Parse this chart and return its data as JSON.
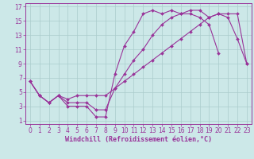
{
  "background_color": "#cce8e8",
  "grid_color": "#aacccc",
  "line_color": "#993399",
  "xlabel": "Windchill (Refroidissement éolien,°C)",
  "xlim": [
    -0.5,
    23.5
  ],
  "ylim": [
    0.5,
    17.5
  ],
  "xticks": [
    0,
    1,
    2,
    3,
    4,
    5,
    6,
    7,
    8,
    9,
    10,
    11,
    12,
    13,
    14,
    15,
    16,
    17,
    18,
    19,
    20,
    21,
    22,
    23
  ],
  "yticks": [
    1,
    3,
    5,
    7,
    9,
    11,
    13,
    15,
    17
  ],
  "series1_x": [
    0,
    1,
    2,
    3,
    4,
    5,
    6,
    7,
    8,
    9,
    10,
    11,
    12,
    13,
    14,
    15,
    16,
    17,
    18,
    19,
    20,
    21
  ],
  "series1_y": [
    6.5,
    4.5,
    3.5,
    4.5,
    3.0,
    3.0,
    3.0,
    1.5,
    1.5,
    7.5,
    11.5,
    13.5,
    16.0,
    16.5,
    16.0,
    16.5,
    16.0,
    16.0,
    15.5,
    14.5,
    10.5,
    null
  ],
  "series2_x": [
    0,
    1,
    2,
    3,
    4,
    5,
    6,
    7,
    8,
    9,
    10,
    11,
    12,
    13,
    14,
    15,
    16,
    17,
    18,
    19,
    20,
    21,
    22,
    23
  ],
  "series2_y": [
    6.5,
    4.5,
    3.5,
    4.5,
    3.5,
    3.5,
    3.5,
    2.5,
    2.5,
    5.5,
    7.5,
    9.5,
    11.0,
    13.0,
    14.5,
    15.5,
    16.0,
    16.5,
    16.5,
    15.5,
    16.0,
    15.5,
    12.5,
    9.0
  ],
  "series3_x": [
    0,
    1,
    2,
    3,
    4,
    5,
    6,
    7,
    8,
    9,
    10,
    11,
    12,
    13,
    14,
    15,
    16,
    17,
    18,
    19,
    20,
    21,
    22,
    23
  ],
  "series3_y": [
    6.5,
    4.5,
    3.5,
    4.5,
    4.0,
    4.5,
    4.5,
    4.5,
    4.5,
    5.5,
    6.5,
    7.5,
    8.5,
    9.5,
    10.5,
    11.5,
    12.5,
    13.5,
    14.5,
    15.5,
    16.0,
    16.0,
    16.0,
    9.0
  ],
  "marker": "D",
  "markersize": 2.0,
  "linewidth": 0.8,
  "tick_fontsize": 5.5,
  "xlabel_fontsize": 6.0
}
